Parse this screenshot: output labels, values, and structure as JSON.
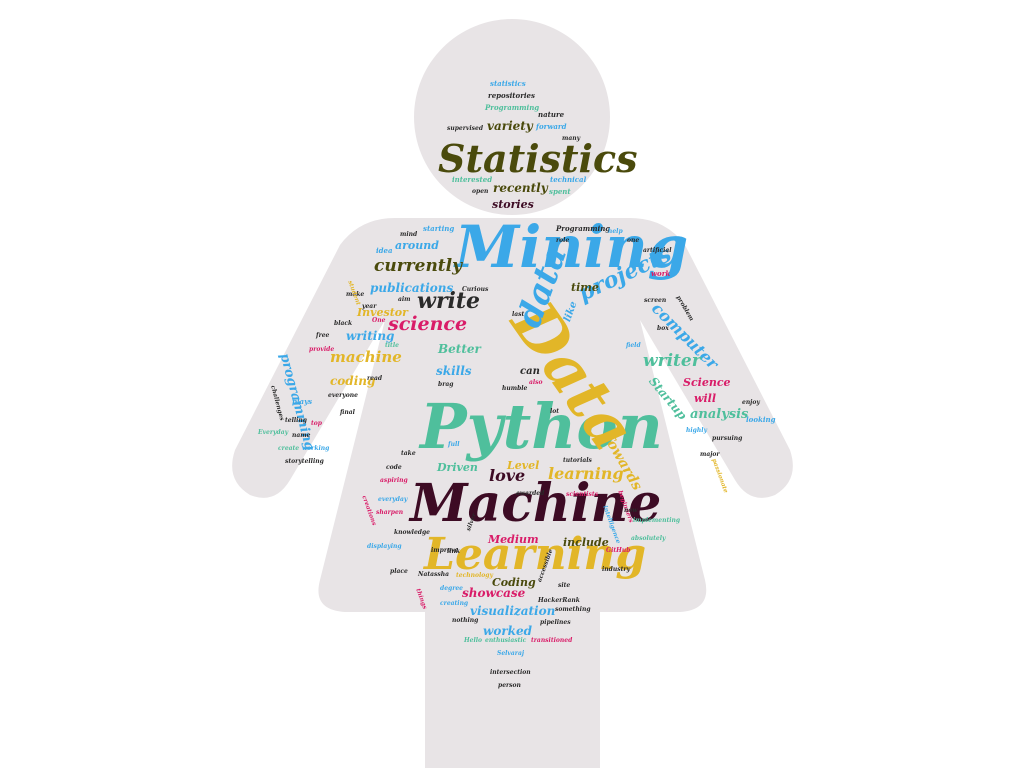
{
  "colors": {
    "background": "#ffffff",
    "silhouette": "#e8e4e6",
    "blue": "#3ba8e8",
    "gold": "#e2b628",
    "teal": "#4fbf9c",
    "maroon": "#3d0b24",
    "olive": "#4a4a0c",
    "pink": "#d91c68",
    "dark": "#2a2a2a"
  },
  "words": [
    {
      "text": "Python",
      "color": "teal"
    },
    {
      "text": "Machine",
      "color": "maroon"
    },
    {
      "text": "Mining",
      "color": "blue"
    },
    {
      "text": "Data",
      "color": "gold"
    },
    {
      "text": "Learning",
      "color": "gold"
    },
    {
      "text": "Statistics",
      "color": "olive"
    },
    {
      "text": "data",
      "color": "blue"
    },
    {
      "text": "projects",
      "color": "blue"
    },
    {
      "text": "write",
      "color": "dark"
    },
    {
      "text": "science",
      "color": "pink"
    },
    {
      "text": "currently",
      "color": "olive"
    },
    {
      "text": "computer",
      "color": "blue"
    },
    {
      "text": "writer",
      "color": "teal"
    },
    {
      "text": "machine",
      "color": "gold"
    },
    {
      "text": "learning",
      "color": "gold"
    },
    {
      "text": "love",
      "color": "maroon"
    },
    {
      "text": "Towards",
      "color": "gold"
    },
    {
      "text": "analysis",
      "color": "teal"
    },
    {
      "text": "publications",
      "color": "blue"
    },
    {
      "text": "programming",
      "color": "blue"
    },
    {
      "text": "skills",
      "color": "blue"
    },
    {
      "text": "Better",
      "color": "teal"
    },
    {
      "text": "coding",
      "color": "gold"
    },
    {
      "text": "Startup",
      "color": "teal"
    },
    {
      "text": "Science",
      "color": "pink"
    },
    {
      "text": "will",
      "color": "pink"
    },
    {
      "text": "visualization",
      "color": "blue"
    },
    {
      "text": "showcase",
      "color": "pink"
    },
    {
      "text": "worked",
      "color": "blue"
    },
    {
      "text": "Coding",
      "color": "olive"
    },
    {
      "text": "include",
      "color": "olive"
    },
    {
      "text": "Medium",
      "color": "pink"
    },
    {
      "text": "Level",
      "color": "gold"
    },
    {
      "text": "Driven",
      "color": "teal"
    },
    {
      "text": "writing",
      "color": "blue"
    },
    {
      "text": "Investor",
      "color": "gold"
    },
    {
      "text": "around",
      "color": "blue"
    },
    {
      "text": "time",
      "color": "olive"
    },
    {
      "text": "like",
      "color": "blue"
    },
    {
      "text": "can",
      "color": "dark"
    },
    {
      "text": "variety",
      "color": "olive"
    },
    {
      "text": "recently",
      "color": "olive"
    },
    {
      "text": "stories",
      "color": "maroon"
    },
    {
      "text": "statistics",
      "color": "blue"
    },
    {
      "text": "repositories",
      "color": "dark"
    },
    {
      "text": "Programming",
      "color": "teal"
    },
    {
      "text": "nature",
      "color": "dark"
    },
    {
      "text": "supervised",
      "color": "dark"
    },
    {
      "text": "forward",
      "color": "blue"
    },
    {
      "text": "many",
      "color": "dark"
    },
    {
      "text": "interested",
      "color": "teal"
    },
    {
      "text": "technical",
      "color": "blue"
    },
    {
      "text": "open",
      "color": "dark"
    },
    {
      "text": "spent",
      "color": "teal"
    },
    {
      "text": "starting",
      "color": "blue"
    },
    {
      "text": "Programming",
      "color": "dark"
    },
    {
      "text": "help",
      "color": "blue"
    },
    {
      "text": "mind",
      "color": "dark"
    },
    {
      "text": "role",
      "color": "dark"
    },
    {
      "text": "one",
      "color": "dark"
    },
    {
      "text": "idea",
      "color": "blue"
    },
    {
      "text": "artificial",
      "color": "dark"
    },
    {
      "text": "work",
      "color": "pink"
    },
    {
      "text": "screen",
      "color": "dark"
    },
    {
      "text": "problem",
      "color": "dark"
    },
    {
      "text": "box",
      "color": "dark"
    },
    {
      "text": "field",
      "color": "blue"
    },
    {
      "text": "Curious",
      "color": "dark"
    },
    {
      "text": "aim",
      "color": "dark"
    },
    {
      "text": "make",
      "color": "dark"
    },
    {
      "text": "last",
      "color": "dark"
    },
    {
      "text": "black",
      "color": "dark"
    },
    {
      "text": "free",
      "color": "dark"
    },
    {
      "text": "title",
      "color": "teal"
    },
    {
      "text": "provide",
      "color": "pink"
    },
    {
      "text": "read",
      "color": "dark"
    },
    {
      "text": "everyone",
      "color": "dark"
    },
    {
      "text": "brag",
      "color": "dark"
    },
    {
      "text": "humble",
      "color": "dark"
    },
    {
      "text": "also",
      "color": "pink"
    },
    {
      "text": "lot",
      "color": "dark"
    },
    {
      "text": "final",
      "color": "dark"
    },
    {
      "text": "plays",
      "color": "blue"
    },
    {
      "text": "telling",
      "color": "dark"
    },
    {
      "text": "name",
      "color": "dark"
    },
    {
      "text": "top",
      "color": "pink"
    },
    {
      "text": "challenges",
      "color": "dark"
    },
    {
      "text": "Everyday",
      "color": "teal"
    },
    {
      "text": "create",
      "color": "teal"
    },
    {
      "text": "working",
      "color": "blue"
    },
    {
      "text": "storytelling",
      "color": "dark"
    },
    {
      "text": "enjoy",
      "color": "dark"
    },
    {
      "text": "looking",
      "color": "blue"
    },
    {
      "text": "highly",
      "color": "blue"
    },
    {
      "text": "pursuing",
      "color": "dark"
    },
    {
      "text": "major",
      "color": "dark"
    },
    {
      "text": "passionate",
      "color": "gold"
    },
    {
      "text": "take",
      "color": "dark"
    },
    {
      "text": "code",
      "color": "dark"
    },
    {
      "text": "aspiring",
      "color": "pink"
    },
    {
      "text": "tutorials",
      "color": "dark"
    },
    {
      "text": "awarded",
      "color": "dark"
    },
    {
      "text": "scientists",
      "color": "pink"
    },
    {
      "text": "beginners",
      "color": "pink"
    },
    {
      "text": "everyday",
      "color": "blue"
    },
    {
      "text": "sharpen",
      "color": "pink"
    },
    {
      "text": "knowledge",
      "color": "dark"
    },
    {
      "text": "displaying",
      "color": "blue"
    },
    {
      "text": "improve",
      "color": "dark"
    },
    {
      "text": "link",
      "color": "dark"
    },
    {
      "text": "intelligence",
      "color": "blue"
    },
    {
      "text": "implementing",
      "color": "teal"
    },
    {
      "text": "absolutely",
      "color": "teal"
    },
    {
      "text": "GitHub",
      "color": "pink"
    },
    {
      "text": "industry",
      "color": "dark"
    },
    {
      "text": "place",
      "color": "dark"
    },
    {
      "text": "Natassha",
      "color": "dark"
    },
    {
      "text": "technology",
      "color": "gold"
    },
    {
      "text": "degree",
      "color": "blue"
    },
    {
      "text": "site",
      "color": "dark"
    },
    {
      "text": "HackerRank",
      "color": "dark"
    },
    {
      "text": "creating",
      "color": "blue"
    },
    {
      "text": "something",
      "color": "dark"
    },
    {
      "text": "nothing",
      "color": "dark"
    },
    {
      "text": "pipelines",
      "color": "dark"
    },
    {
      "text": "Hello",
      "color": "teal"
    },
    {
      "text": "enthusiastic",
      "color": "teal"
    },
    {
      "text": "transitioned",
      "color": "pink"
    },
    {
      "text": "Selvaraj",
      "color": "blue"
    },
    {
      "text": "intersection",
      "color": "dark"
    },
    {
      "text": "person",
      "color": "dark"
    },
    {
      "text": "accessible",
      "color": "dark"
    },
    {
      "text": "things",
      "color": "pink"
    },
    {
      "text": "silver",
      "color": "dark"
    },
    {
      "text": "now",
      "color": "dark"
    },
    {
      "text": "full",
      "color": "blue"
    },
    {
      "text": "year",
      "color": "dark"
    },
    {
      "text": "One",
      "color": "pink"
    },
    {
      "text": "student",
      "color": "gold"
    },
    {
      "text": "creations",
      "color": "pink"
    }
  ]
}
